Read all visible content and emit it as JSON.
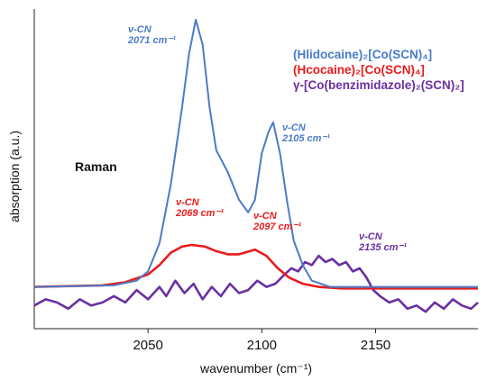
{
  "chart_data": {
    "type": "line",
    "xlabel": "wavenumber (cm⁻¹)",
    "ylabel": "absorption (a.u.)",
    "mode_label": "Raman",
    "xlim": [
      2000,
      2195
    ],
    "ylim": [
      0,
      1
    ],
    "xticks": [
      2050,
      2100,
      2150
    ],
    "grid": false,
    "legend_position": "top-right",
    "series": [
      {
        "name": "(Hlidocaine)₂[Co(SCN)₄]",
        "color": "#4a7bc8",
        "x": [
          2000,
          2035,
          2045,
          2050,
          2055,
          2060,
          2065,
          2068,
          2071,
          2074,
          2077,
          2080,
          2085,
          2090,
          2094,
          2097,
          2100,
          2103,
          2105,
          2108,
          2111,
          2114,
          2118,
          2122,
          2130,
          2140,
          2150,
          2165,
          2180,
          2195
        ],
        "y": [
          0.12,
          0.125,
          0.14,
          0.17,
          0.26,
          0.45,
          0.7,
          0.87,
          0.98,
          0.9,
          0.7,
          0.56,
          0.49,
          0.4,
          0.36,
          0.4,
          0.55,
          0.62,
          0.65,
          0.55,
          0.4,
          0.27,
          0.19,
          0.14,
          0.12,
          0.12,
          0.12,
          0.12,
          0.12,
          0.12
        ]
      },
      {
        "name": "(Hcocaine)₂[Co(SCN)₄]",
        "color": "#e81c1c",
        "x": [
          2000,
          2030,
          2040,
          2050,
          2055,
          2060,
          2065,
          2069,
          2075,
          2080,
          2085,
          2090,
          2097,
          2102,
          2107,
          2112,
          2118,
          2125,
          2135,
          2150,
          2165,
          2180,
          2195
        ],
        "y": [
          0.12,
          0.125,
          0.135,
          0.16,
          0.19,
          0.23,
          0.25,
          0.255,
          0.25,
          0.235,
          0.225,
          0.225,
          0.24,
          0.22,
          0.18,
          0.15,
          0.13,
          0.12,
          0.115,
          0.115,
          0.115,
          0.115,
          0.115
        ]
      },
      {
        "name": "γ-[Co(benzimidazole)₂(SCN)₂]",
        "color": "#6a2fa0",
        "x": [
          2000,
          2005,
          2010,
          2015,
          2020,
          2025,
          2030,
          2035,
          2040,
          2045,
          2050,
          2055,
          2058,
          2062,
          2066,
          2070,
          2074,
          2078,
          2082,
          2086,
          2090,
          2094,
          2098,
          2102,
          2106,
          2110,
          2113,
          2116,
          2119,
          2122,
          2125,
          2128,
          2131,
          2134,
          2137,
          2140,
          2143,
          2146,
          2149,
          2152,
          2156,
          2160,
          2164,
          2168,
          2172,
          2176,
          2180,
          2184,
          2188,
          2192,
          2195
        ],
        "y": [
          0.06,
          0.08,
          0.07,
          0.05,
          0.08,
          0.06,
          0.07,
          0.09,
          0.07,
          0.11,
          0.08,
          0.12,
          0.09,
          0.14,
          0.1,
          0.13,
          0.08,
          0.12,
          0.09,
          0.13,
          0.1,
          0.11,
          0.14,
          0.12,
          0.13,
          0.16,
          0.18,
          0.17,
          0.2,
          0.19,
          0.22,
          0.2,
          0.21,
          0.19,
          0.2,
          0.17,
          0.18,
          0.15,
          0.11,
          0.09,
          0.07,
          0.08,
          0.05,
          0.06,
          0.04,
          0.07,
          0.05,
          0.08,
          0.06,
          0.05,
          0.07
        ]
      }
    ],
    "annotations": [
      {
        "label": "ν-CN",
        "value": "2071 cm⁻¹",
        "color": "#4a7bc8"
      },
      {
        "label": "ν-CN",
        "value": "2105 cm⁻¹",
        "color": "#4a7bc8"
      },
      {
        "label": "ν-CN",
        "value": "2069 cm⁻¹",
        "color": "#e81c1c"
      },
      {
        "label": "ν-CN",
        "value": "2097 cm⁻¹",
        "color": "#e81c1c"
      },
      {
        "label": "ν-CN",
        "value": "2135 cm⁻¹",
        "color": "#6a2fa0"
      }
    ]
  }
}
